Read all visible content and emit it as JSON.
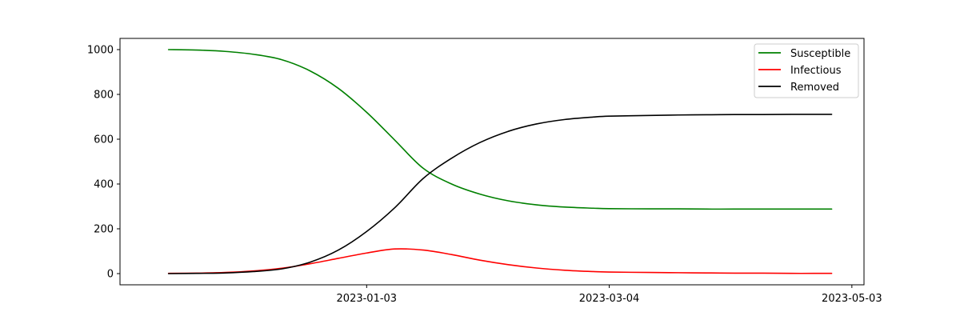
{
  "chart_data": {
    "type": "line",
    "x": [
      "2022-11-15",
      "2022-11-22",
      "2022-11-29",
      "2022-12-06",
      "2022-12-13",
      "2022-12-20",
      "2022-12-27",
      "2023-01-03",
      "2023-01-10",
      "2023-01-17",
      "2023-01-24",
      "2023-01-31",
      "2023-02-07",
      "2023-02-14",
      "2023-02-21",
      "2023-02-28",
      "2023-03-04",
      "2023-03-14",
      "2023-03-21",
      "2023-03-28",
      "2023-04-04",
      "2023-04-11",
      "2023-04-18",
      "2023-04-25",
      "2023-04-28"
    ],
    "series": [
      {
        "name": "Susceptible",
        "color": "#008000",
        "values": [
          1000,
          998,
          992,
          979,
          955,
          905,
          827,
          720,
          595,
          470,
          400,
          355,
          325,
          307,
          297,
          292,
          290,
          289,
          289,
          288,
          288,
          288,
          288,
          288,
          288
        ]
      },
      {
        "name": "Infectious",
        "color": "#ff0000",
        "values": [
          1,
          2,
          5,
          12,
          24,
          44,
          68,
          92,
          110,
          105,
          85,
          60,
          40,
          25,
          15,
          9,
          7,
          5,
          4,
          3,
          2,
          2,
          1,
          1,
          1
        ]
      },
      {
        "name": "Removed",
        "color": "#000000",
        "values": [
          0,
          1,
          3,
          9,
          21,
          51,
          105,
          188,
          295,
          425,
          515,
          585,
          635,
          668,
          688,
          699,
          703,
          706,
          708,
          709,
          710,
          710,
          711,
          711,
          711
        ]
      }
    ],
    "xlim": [
      "2022-11-03",
      "2023-05-06"
    ],
    "ylim": [
      -50,
      1050
    ],
    "x_ticks": [
      "2023-01-03",
      "2023-03-04",
      "2023-05-03"
    ],
    "y_ticks": [
      0,
      200,
      400,
      600,
      800,
      1000
    ],
    "legend_position": "top-right",
    "grid": false
  }
}
